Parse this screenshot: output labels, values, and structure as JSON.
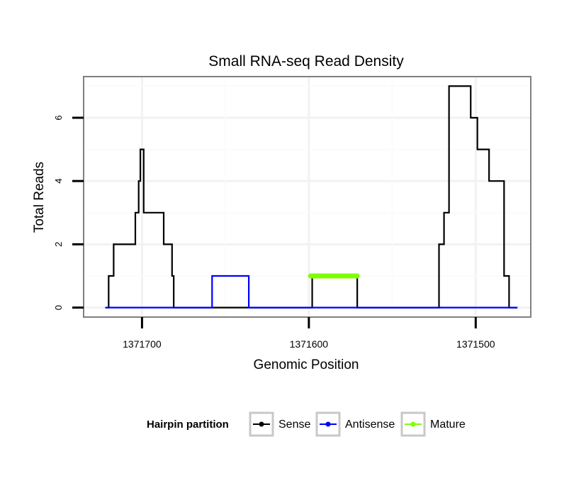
{
  "chart_data": {
    "type": "line",
    "title": "Small RNA-seq Read Density",
    "xlabel": "Genomic Position",
    "ylabel": "Total Reads",
    "x_reversed": true,
    "xlim": [
      1371735,
      1371467
    ],
    "ylim": [
      -0.3,
      7.3
    ],
    "x_ticks": [
      1371700,
      1371600,
      1371500
    ],
    "x_tick_labels": [
      "1371700",
      "1371600",
      "1371500"
    ],
    "y_ticks": [
      0,
      2,
      4,
      6
    ],
    "y_tick_labels": [
      "0",
      "2",
      "4",
      "6"
    ],
    "grid": true,
    "legend": {
      "title": "Hairpin partition",
      "position": "bottom",
      "entries": [
        "Sense",
        "Antisense",
        "Mature"
      ]
    },
    "series": [
      {
        "name": "Sense",
        "color": "#000000",
        "x": [
          1371722,
          1371720,
          1371720,
          1371717,
          1371717,
          1371704,
          1371704,
          1371702,
          1371702,
          1371701,
          1371701,
          1371699,
          1371699,
          1371696,
          1371696,
          1371687,
          1371687,
          1371682,
          1371682,
          1371681,
          1371681,
          1371675,
          1371675,
          1371598,
          1371598,
          1371571,
          1371571,
          1371522,
          1371522,
          1371519,
          1371519,
          1371516,
          1371516,
          1371511,
          1371511,
          1371503,
          1371503,
          1371499,
          1371499,
          1371496,
          1371496,
          1371492,
          1371492,
          1371490,
          1371490,
          1371483,
          1371483,
          1371480,
          1371480,
          1371475
        ],
        "y": [
          0,
          0,
          1,
          1,
          2,
          2,
          3,
          3,
          4,
          4,
          5,
          5,
          3,
          3,
          3,
          3,
          2,
          2,
          1,
          1,
          0,
          0,
          0,
          0,
          1,
          1,
          0,
          0,
          2,
          2,
          3,
          3,
          7,
          7,
          7,
          7,
          6,
          6,
          5,
          5,
          5,
          5,
          4,
          4,
          4,
          4,
          1,
          1,
          0,
          0
        ]
      },
      {
        "name": "Antisense",
        "color": "#0000ff",
        "x": [
          1371722,
          1371658,
          1371658,
          1371636,
          1371636,
          1371475
        ],
        "y": [
          0,
          0,
          1,
          1,
          0,
          0
        ]
      },
      {
        "name": "Mature",
        "color": "#7fff00",
        "x": [
          1371599,
          1371571
        ],
        "y": [
          1,
          1
        ]
      }
    ]
  }
}
